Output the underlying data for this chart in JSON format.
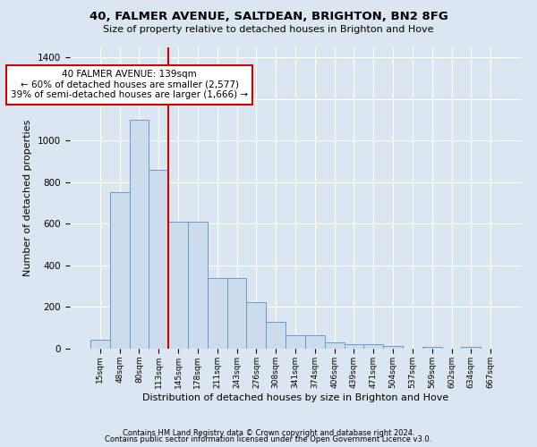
{
  "title1": "40, FALMER AVENUE, SALTDEAN, BRIGHTON, BN2 8FG",
  "title2": "Size of property relative to detached houses in Brighton and Hove",
  "xlabel": "Distribution of detached houses by size in Brighton and Hove",
  "ylabel": "Number of detached properties",
  "footer1": "Contains HM Land Registry data © Crown copyright and database right 2024.",
  "footer2": "Contains public sector information licensed under the Open Government Licence v3.0.",
  "annotation_line1": "40 FALMER AVENUE: 139sqm",
  "annotation_line2": "← 60% of detached houses are smaller (2,577)",
  "annotation_line3": "39% of semi-detached houses are larger (1,666) →",
  "bar_labels": [
    "15sqm",
    "48sqm",
    "80sqm",
    "113sqm",
    "145sqm",
    "178sqm",
    "211sqm",
    "243sqm",
    "276sqm",
    "308sqm",
    "341sqm",
    "374sqm",
    "406sqm",
    "439sqm",
    "471sqm",
    "504sqm",
    "537sqm",
    "569sqm",
    "602sqm",
    "634sqm",
    "667sqm"
  ],
  "bar_values": [
    45,
    750,
    1100,
    860,
    610,
    610,
    340,
    340,
    225,
    130,
    65,
    65,
    28,
    22,
    20,
    12,
    2,
    8,
    2,
    8,
    2
  ],
  "bar_color": "#ccdcec",
  "bar_edge_color": "#6699cc",
  "marker_color": "#cc0000",
  "ylim": [
    0,
    1450
  ],
  "yticks": [
    0,
    200,
    400,
    600,
    800,
    1000,
    1200,
    1400
  ],
  "background_color": "#dce6f0",
  "plot_bg_color": "#dce6f0",
  "annotation_box_facecolor": "#ffffff",
  "annotation_box_edge": "#cc0000"
}
